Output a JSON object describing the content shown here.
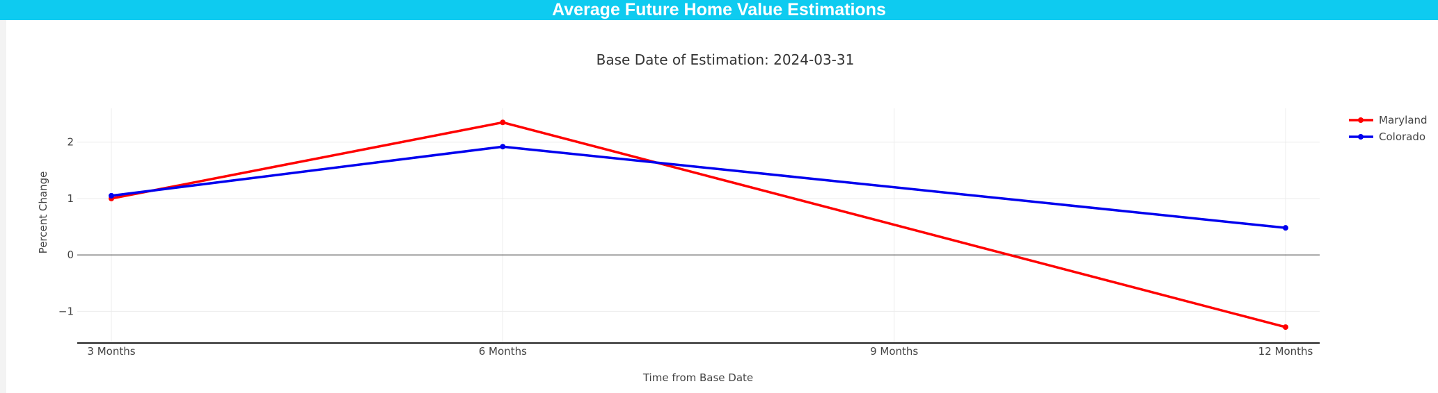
{
  "header": {
    "title": "Average Future Home Value Estimations",
    "background": "#0ecbf0"
  },
  "chart_data": {
    "type": "line",
    "title": "Base Date of Estimation: 2024-03-31",
    "xlabel": "Time from Base Date",
    "ylabel": "Percent Change",
    "categories": [
      "3 Months",
      "6 Months",
      "9 Months",
      "12 Months"
    ],
    "ylim": [
      -1.55,
      2.6
    ],
    "yticks": [
      2,
      1,
      0,
      -1
    ],
    "ytick_labels": [
      "2",
      "1",
      "0",
      "−1"
    ],
    "grid": true,
    "legend_position": "top-right",
    "series": [
      {
        "name": "Maryland",
        "color": "#ff0000",
        "x": [
          "3 Months",
          "6 Months",
          "12 Months"
        ],
        "values": [
          1.0,
          2.35,
          -1.28
        ]
      },
      {
        "name": "Colorado",
        "color": "#0000ee",
        "x": [
          "3 Months",
          "6 Months",
          "12 Months"
        ],
        "values": [
          1.05,
          1.92,
          0.48
        ]
      }
    ]
  }
}
